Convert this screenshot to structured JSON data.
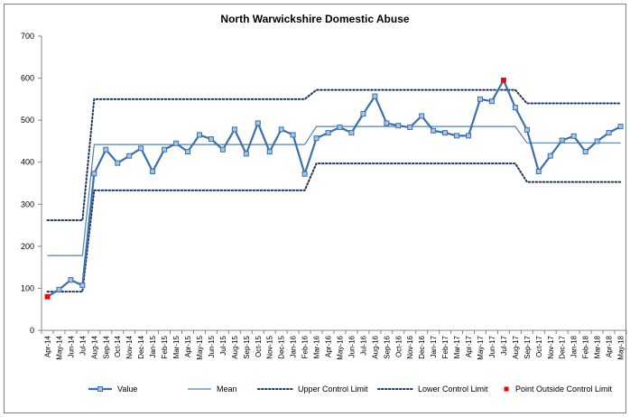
{
  "chart_data": {
    "type": "line",
    "title": "North Warwickshire Domestic Abuse",
    "xlabel": "",
    "ylabel": "",
    "ylim": [
      0,
      700
    ],
    "yticks": [
      0,
      100,
      200,
      300,
      400,
      500,
      600,
      700
    ],
    "grid": false,
    "legend_position": "bottom",
    "categories": [
      "Apr-14",
      "May-14",
      "Jun-14",
      "Jul-14",
      "Aug-14",
      "Sep-14",
      "Oct-14",
      "Nov-14",
      "Dec-14",
      "Jan-15",
      "Feb-15",
      "Mar-15",
      "Apr-15",
      "May-15",
      "Jun-15",
      "Jul-15",
      "Aug-15",
      "Sep-15",
      "Oct-15",
      "Nov-15",
      "Dec-15",
      "Jan-16",
      "Feb-16",
      "Mar-16",
      "Apr-16",
      "May-16",
      "Jun-16",
      "Jul-16",
      "Aug-16",
      "Sep-16",
      "Oct-16",
      "Nov-16",
      "Dec-16",
      "Jan-17",
      "Feb-17",
      "Mar-17",
      "Apr-17",
      "May-17",
      "Jun-17",
      "Jul-17",
      "Aug-17",
      "Sep-17",
      "Oct-17",
      "Nov-17",
      "Dec-17",
      "Jan-18",
      "Feb-18",
      "Mar-18",
      "Apr-18",
      "May-18"
    ],
    "series": [
      {
        "name": "Value",
        "kind": "line-marker",
        "color": "#4f81bd",
        "values": [
          80,
          97,
          120,
          107,
          373,
          430,
          398,
          415,
          433,
          378,
          430,
          445,
          425,
          465,
          455,
          430,
          478,
          420,
          493,
          425,
          478,
          465,
          372,
          457,
          470,
          483,
          470,
          515,
          557,
          493,
          487,
          483,
          510,
          475,
          470,
          463,
          463,
          550,
          545,
          595,
          530,
          477,
          378,
          415,
          452,
          462,
          425,
          450,
          470,
          485
        ]
      },
      {
        "name": "Mean",
        "kind": "line",
        "color": "#4f81bd",
        "values": [
          178,
          178,
          178,
          178,
          442,
          442,
          442,
          442,
          442,
          442,
          442,
          442,
          442,
          442,
          442,
          442,
          442,
          442,
          442,
          442,
          442,
          442,
          442,
          485,
          485,
          485,
          485,
          485,
          485,
          485,
          485,
          485,
          485,
          485,
          485,
          485,
          485,
          485,
          485,
          485,
          485,
          446,
          446,
          446,
          446,
          446,
          446,
          446,
          446,
          446
        ]
      },
      {
        "name": "Upper Control Limit",
        "kind": "dotted",
        "color": "#1f3864",
        "values": [
          262,
          262,
          262,
          262,
          550,
          550,
          550,
          550,
          550,
          550,
          550,
          550,
          550,
          550,
          550,
          550,
          550,
          550,
          550,
          550,
          550,
          550,
          550,
          572,
          572,
          572,
          572,
          572,
          572,
          572,
          572,
          572,
          572,
          572,
          572,
          572,
          572,
          572,
          572,
          572,
          572,
          540,
          540,
          540,
          540,
          540,
          540,
          540,
          540,
          540
        ]
      },
      {
        "name": "Lower Control Limit",
        "kind": "dotted",
        "color": "#1f3864",
        "values": [
          92,
          92,
          92,
          92,
          333,
          333,
          333,
          333,
          333,
          333,
          333,
          333,
          333,
          333,
          333,
          333,
          333,
          333,
          333,
          333,
          333,
          333,
          333,
          397,
          397,
          397,
          397,
          397,
          397,
          397,
          397,
          397,
          397,
          397,
          397,
          397,
          397,
          397,
          397,
          397,
          397,
          353,
          353,
          353,
          353,
          353,
          353,
          353,
          353,
          353
        ]
      },
      {
        "name": "Point Outside Control Limit",
        "kind": "points",
        "color": "#ff0000",
        "points": [
          {
            "x": "Apr-14",
            "y": 80
          },
          {
            "x": "Jul-17",
            "y": 595
          }
        ]
      }
    ]
  }
}
